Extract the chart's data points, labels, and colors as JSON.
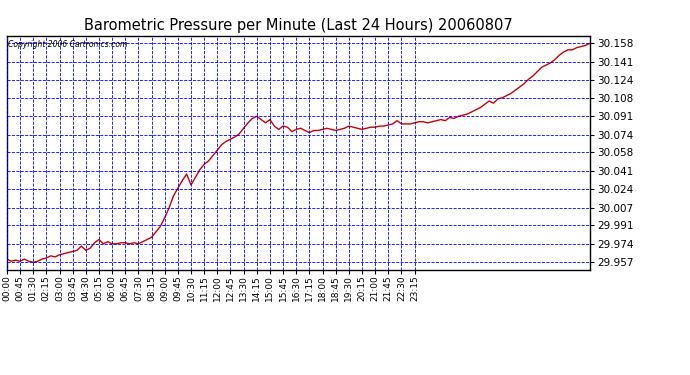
{
  "title": "Barometric Pressure per Minute (Last 24 Hours) 20060807",
  "copyright_text": "Copyright 2006 Cartronics.com",
  "bg_color": "#ffffff",
  "plot_bg_color": "#ffffff",
  "grid_color": "#0000ff",
  "line_color": "#cc0000",
  "y_ticks": [
    29.957,
    29.974,
    29.991,
    30.007,
    30.024,
    30.041,
    30.058,
    30.074,
    30.091,
    30.108,
    30.124,
    30.141,
    30.158
  ],
  "y_min": 29.95,
  "y_max": 30.165,
  "x_tick_labels": [
    "00:00",
    "00:45",
    "01:30",
    "02:15",
    "03:00",
    "03:45",
    "04:30",
    "05:15",
    "06:00",
    "06:45",
    "07:30",
    "08:15",
    "09:00",
    "09:45",
    "10:30",
    "11:15",
    "12:00",
    "12:45",
    "13:30",
    "14:15",
    "15:00",
    "15:45",
    "16:30",
    "17:15",
    "18:00",
    "18:45",
    "19:30",
    "20:15",
    "21:00",
    "21:45",
    "22:30",
    "23:15"
  ],
  "data_profile": [
    [
      0,
      29.96
    ],
    [
      15,
      29.958
    ],
    [
      30,
      29.959
    ],
    [
      45,
      29.958
    ],
    [
      60,
      29.96
    ],
    [
      75,
      29.958
    ],
    [
      90,
      29.957
    ],
    [
      105,
      29.958
    ],
    [
      120,
      29.96
    ],
    [
      135,
      29.961
    ],
    [
      150,
      29.963
    ],
    [
      165,
      29.962
    ],
    [
      180,
      29.964
    ],
    [
      195,
      29.965
    ],
    [
      210,
      29.966
    ],
    [
      225,
      29.967
    ],
    [
      240,
      29.968
    ],
    [
      255,
      29.972
    ],
    [
      270,
      29.968
    ],
    [
      285,
      29.97
    ],
    [
      300,
      29.975
    ],
    [
      315,
      29.978
    ],
    [
      330,
      29.974
    ],
    [
      345,
      29.976
    ],
    [
      360,
      29.974
    ],
    [
      375,
      29.974
    ],
    [
      390,
      29.975
    ],
    [
      405,
      29.975
    ],
    [
      420,
      29.974
    ],
    [
      435,
      29.975
    ],
    [
      450,
      29.974
    ],
    [
      465,
      29.976
    ],
    [
      480,
      29.978
    ],
    [
      495,
      29.98
    ],
    [
      510,
      29.985
    ],
    [
      525,
      29.99
    ],
    [
      540,
      29.998
    ],
    [
      555,
      30.007
    ],
    [
      570,
      30.018
    ],
    [
      585,
      30.025
    ],
    [
      600,
      30.032
    ],
    [
      615,
      30.038
    ],
    [
      630,
      30.028
    ],
    [
      645,
      30.035
    ],
    [
      660,
      30.042
    ],
    [
      675,
      30.047
    ],
    [
      690,
      30.05
    ],
    [
      705,
      30.055
    ],
    [
      720,
      30.06
    ],
    [
      735,
      30.065
    ],
    [
      750,
      30.068
    ],
    [
      765,
      30.07
    ],
    [
      780,
      30.072
    ],
    [
      795,
      30.075
    ],
    [
      810,
      30.08
    ],
    [
      825,
      30.085
    ],
    [
      840,
      30.089
    ],
    [
      855,
      30.091
    ],
    [
      870,
      30.088
    ],
    [
      885,
      30.085
    ],
    [
      900,
      30.088
    ],
    [
      915,
      30.082
    ],
    [
      930,
      30.079
    ],
    [
      945,
      30.082
    ],
    [
      960,
      30.081
    ],
    [
      975,
      30.077
    ],
    [
      990,
      30.079
    ],
    [
      1005,
      30.08
    ],
    [
      1020,
      30.078
    ],
    [
      1035,
      30.076
    ],
    [
      1050,
      30.078
    ],
    [
      1065,
      30.078
    ],
    [
      1080,
      30.079
    ],
    [
      1095,
      30.08
    ],
    [
      1110,
      30.079
    ],
    [
      1125,
      30.078
    ],
    [
      1140,
      30.079
    ],
    [
      1155,
      30.08
    ],
    [
      1170,
      30.082
    ],
    [
      1185,
      30.081
    ],
    [
      1200,
      30.08
    ],
    [
      1215,
      30.079
    ],
    [
      1230,
      30.08
    ],
    [
      1245,
      30.081
    ],
    [
      1260,
      30.081
    ],
    [
      1275,
      30.082
    ],
    [
      1290,
      30.082
    ],
    [
      1305,
      30.083
    ],
    [
      1320,
      30.084
    ],
    [
      1335,
      30.087
    ],
    [
      1350,
      30.084
    ],
    [
      1365,
      30.084
    ],
    [
      1380,
      30.084
    ],
    [
      1395,
      30.085
    ],
    [
      1410,
      30.086
    ],
    [
      1425,
      30.086
    ],
    [
      1440,
      30.085
    ],
    [
      1455,
      30.086
    ],
    [
      1470,
      30.087
    ],
    [
      1485,
      30.088
    ],
    [
      1500,
      30.087
    ],
    [
      1515,
      30.09
    ],
    [
      1530,
      30.089
    ],
    [
      1545,
      30.091
    ],
    [
      1560,
      30.092
    ],
    [
      1575,
      30.093
    ],
    [
      1590,
      30.095
    ],
    [
      1605,
      30.097
    ],
    [
      1620,
      30.099
    ],
    [
      1635,
      30.102
    ],
    [
      1650,
      30.105
    ],
    [
      1665,
      30.103
    ],
    [
      1680,
      30.107
    ],
    [
      1695,
      30.108
    ],
    [
      1710,
      30.11
    ],
    [
      1725,
      30.112
    ],
    [
      1740,
      30.115
    ],
    [
      1755,
      30.118
    ],
    [
      1770,
      30.121
    ],
    [
      1785,
      30.125
    ],
    [
      1800,
      30.128
    ],
    [
      1815,
      30.132
    ],
    [
      1830,
      30.136
    ],
    [
      1845,
      30.138
    ],
    [
      1860,
      30.14
    ],
    [
      1875,
      30.143
    ],
    [
      1890,
      30.147
    ],
    [
      1905,
      30.15
    ],
    [
      1920,
      30.152
    ],
    [
      1935,
      30.152
    ],
    [
      1950,
      30.154
    ],
    [
      1965,
      30.155
    ],
    [
      1980,
      30.156
    ],
    [
      1995,
      30.158
    ]
  ]
}
